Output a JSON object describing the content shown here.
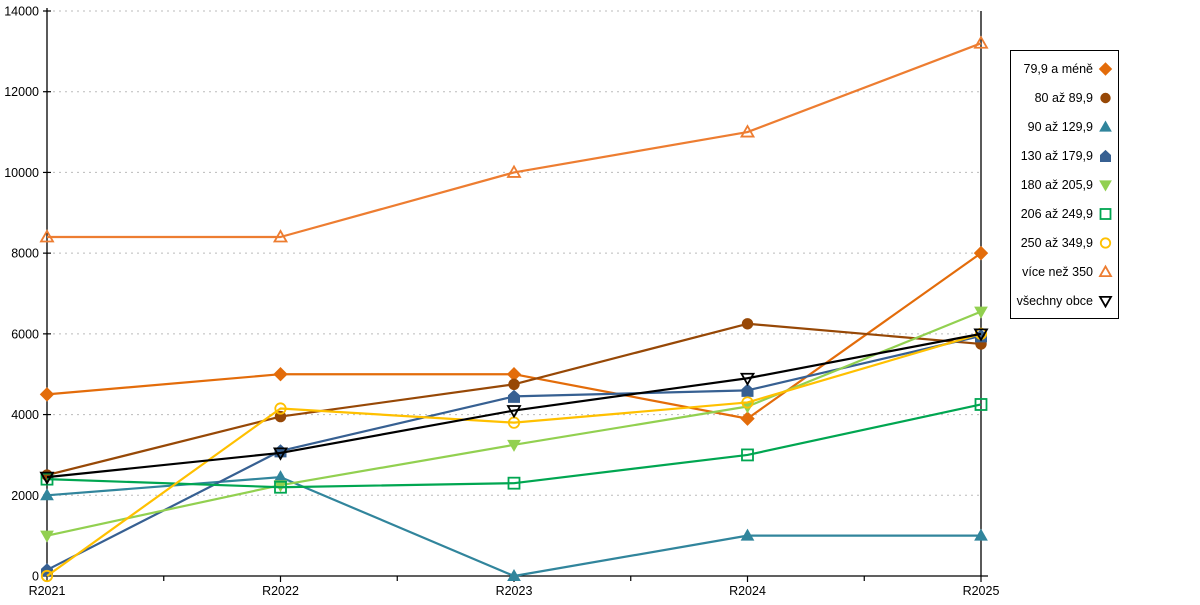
{
  "chart_data": {
    "type": "line",
    "title": "",
    "xlabel": "",
    "ylabel": "",
    "categories": [
      "R2021",
      "R2022",
      "R2023",
      "R2024",
      "R2025"
    ],
    "ylim": [
      0,
      14000
    ],
    "ytick_step": 2000,
    "yticks": [
      "0",
      "2000",
      "4000",
      "6000",
      "8000",
      "10000",
      "12000",
      "14000"
    ],
    "grid": "horizontal-dashed",
    "legend_position": "right",
    "series": [
      {
        "name": "79,9 a méně",
        "color": "#E36C0A",
        "marker": "diamond",
        "fill": "filled",
        "values": [
          4500,
          5000,
          5000,
          3900,
          8000
        ]
      },
      {
        "name": "80 až 89,9",
        "color": "#974806",
        "marker": "circle",
        "fill": "filled",
        "values": [
          2500,
          3950,
          4750,
          6250,
          5750
        ]
      },
      {
        "name": "90 až 129,9",
        "color": "#31859C",
        "marker": "triangle-up",
        "fill": "filled",
        "values": [
          2000,
          2450,
          0,
          1000,
          1000
        ]
      },
      {
        "name": "130 až 179,9",
        "color": "#376092",
        "marker": "pentagon",
        "fill": "filled",
        "values": [
          150,
          3100,
          4450,
          4600,
          5950
        ]
      },
      {
        "name": "180 až 205,9",
        "color": "#92D050",
        "marker": "triangle-down",
        "fill": "filled",
        "values": [
          1000,
          2250,
          3250,
          4200,
          6550
        ]
      },
      {
        "name": "206 až 249,9",
        "color": "#00A651",
        "marker": "square",
        "fill": "hollow",
        "values": [
          2400,
          2200,
          2300,
          3000,
          4250
        ]
      },
      {
        "name": "250 až 349,9",
        "color": "#FFC000",
        "marker": "circle",
        "fill": "hollow",
        "values": [
          0,
          4150,
          3800,
          4300,
          6000
        ]
      },
      {
        "name": "více než 350",
        "color": "#ED7D31",
        "marker": "triangle-up",
        "fill": "hollow",
        "values": [
          8400,
          8400,
          10000,
          11000,
          13200
        ]
      },
      {
        "name": "všechny obce",
        "color": "#000000",
        "marker": "triangle-down",
        "fill": "hollow",
        "values": [
          2450,
          3050,
          4100,
          4900,
          6000
        ]
      }
    ],
    "colors": {
      "axis": "#000000",
      "gridline": "#bbbbbb",
      "background": "#ffffff"
    }
  }
}
